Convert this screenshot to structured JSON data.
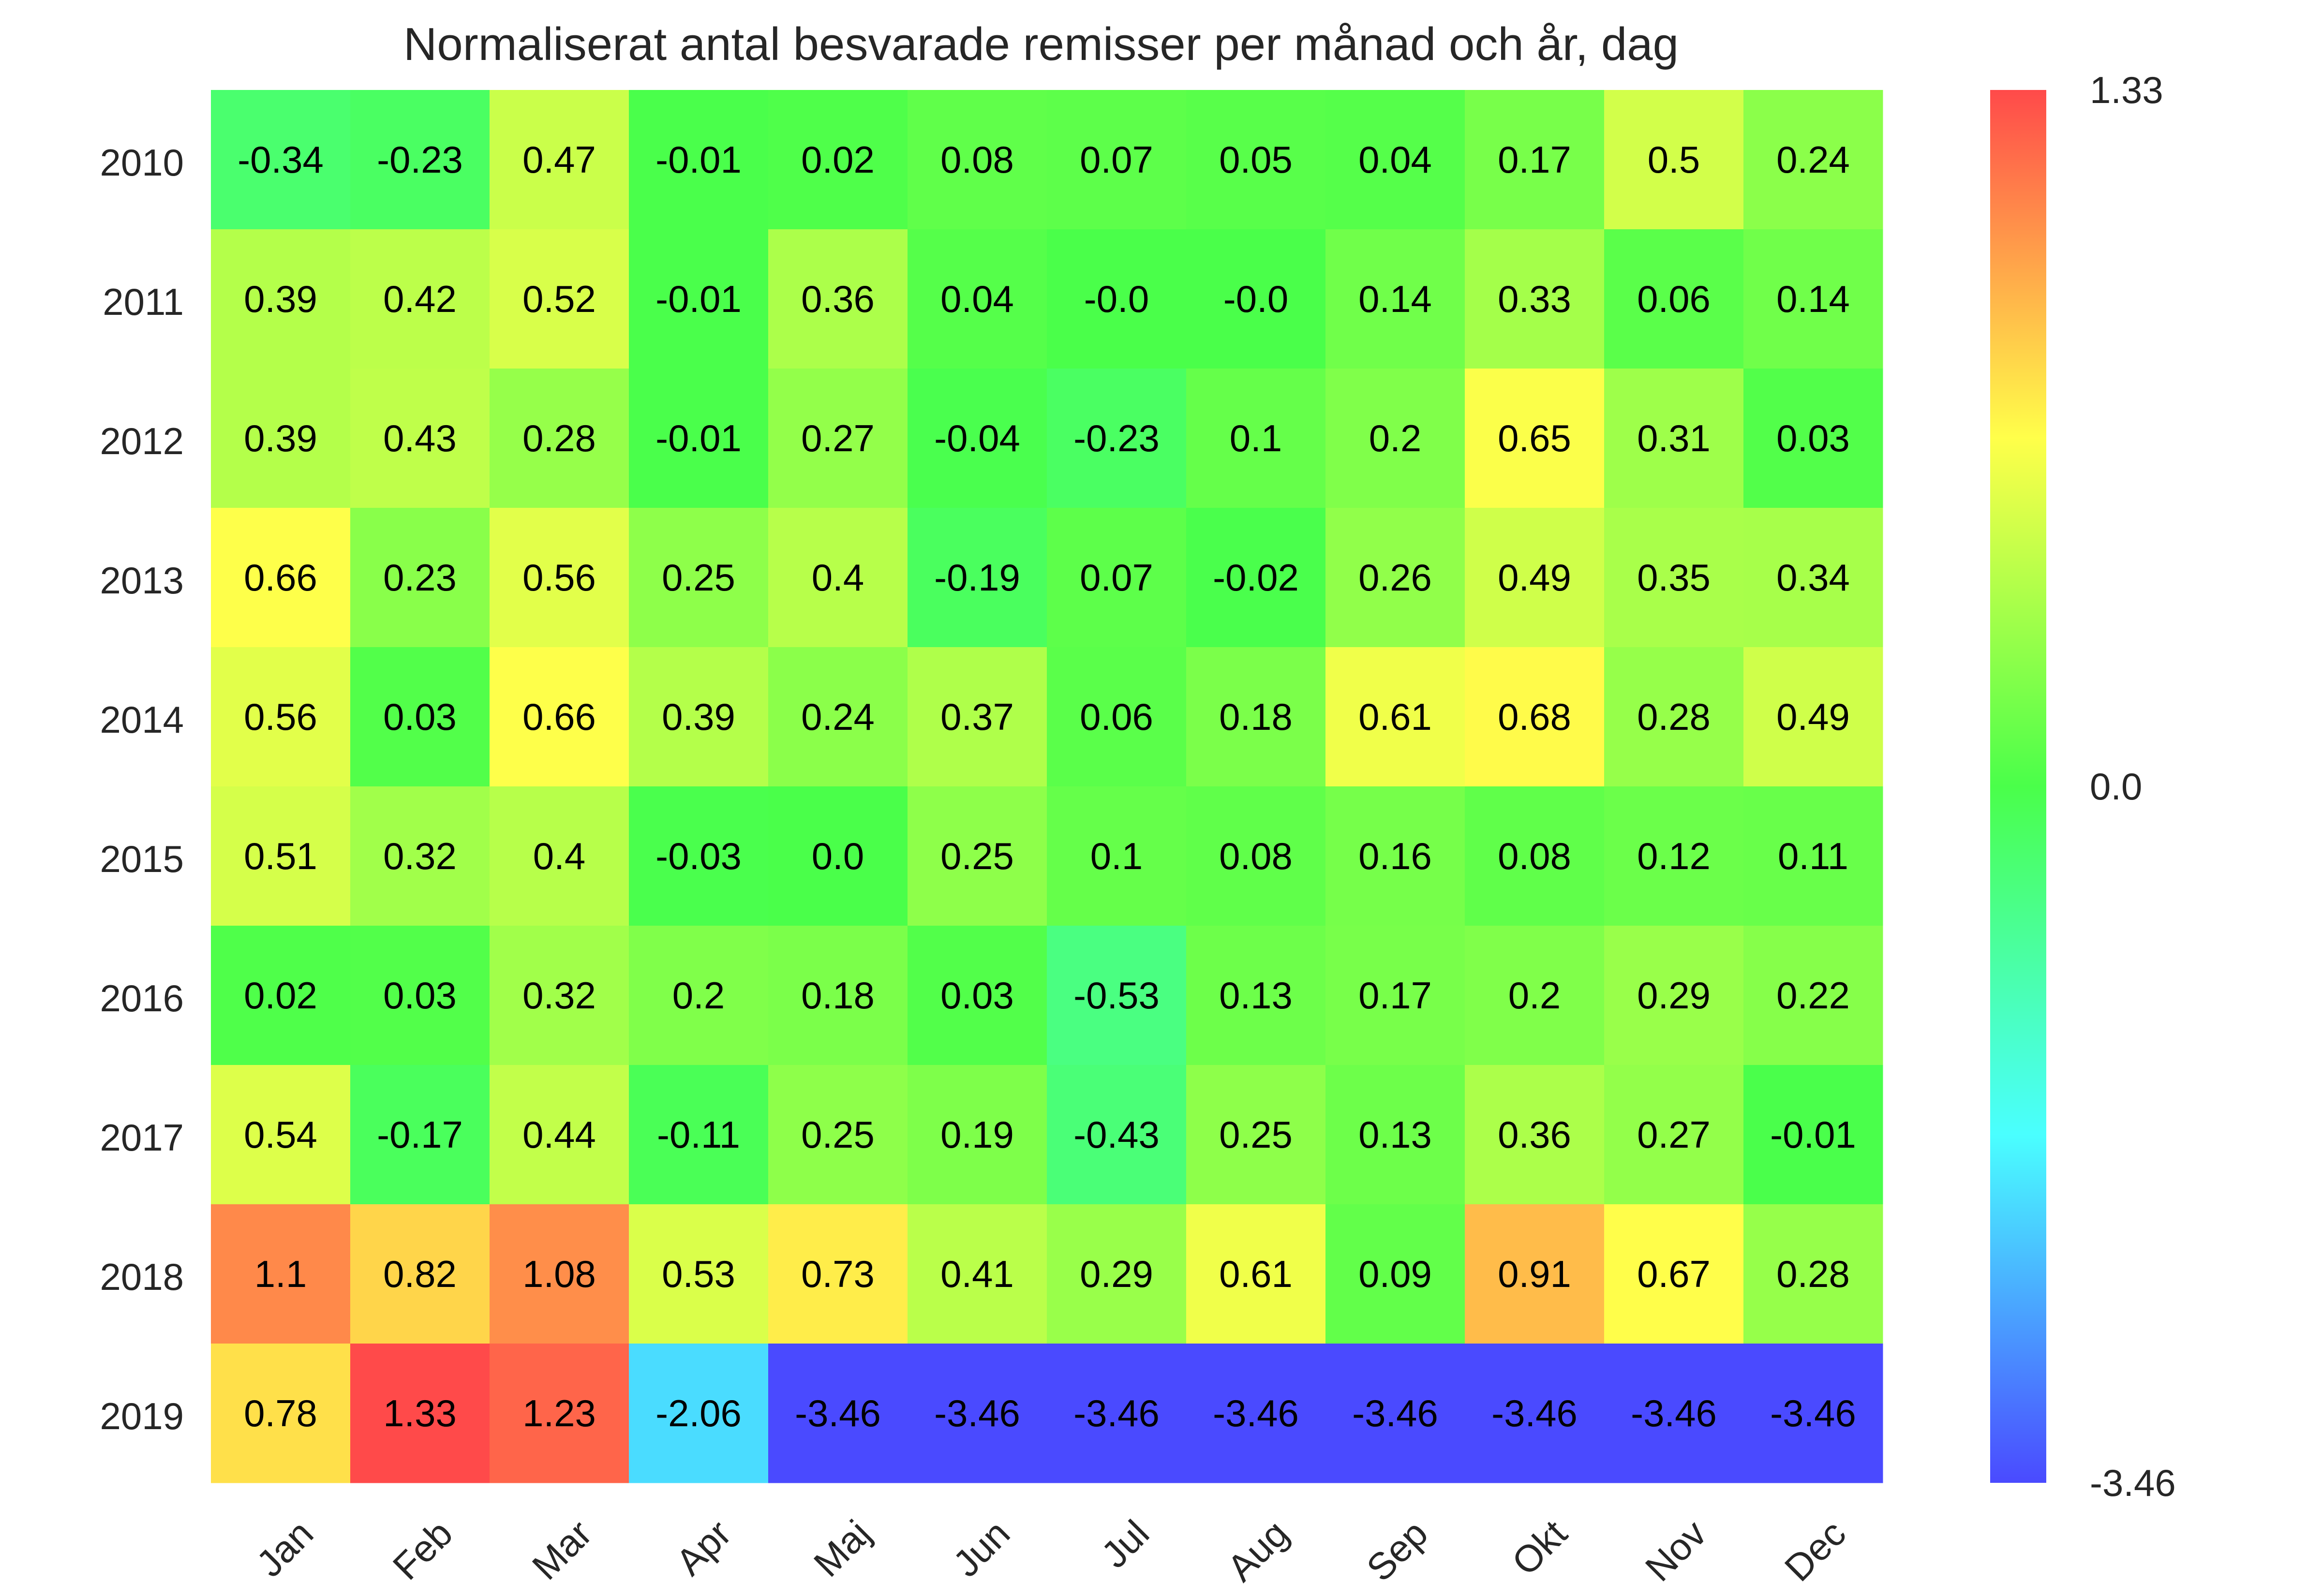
{
  "chart_data": {
    "type": "heatmap",
    "title": "Normaliserat antal besvarade remisser per månad och år, dag",
    "xlabel": "",
    "ylabel": "",
    "x_categories": [
      "Jan",
      "Feb",
      "Mar",
      "Apr",
      "Maj",
      "Jun",
      "Jul",
      "Aug",
      "Sep",
      "Okt",
      "Nov",
      "Dec"
    ],
    "y_categories": [
      "2010",
      "2011",
      "2012",
      "2013",
      "2014",
      "2015",
      "2016",
      "2017",
      "2018",
      "2019"
    ],
    "values": [
      [
        -0.34,
        -0.23,
        0.47,
        -0.01,
        0.02,
        0.08,
        0.07,
        0.05,
        0.04,
        0.17,
        0.5,
        0.24
      ],
      [
        0.39,
        0.42,
        0.52,
        -0.01,
        0.36,
        0.04,
        -0.0,
        -0.0,
        0.14,
        0.33,
        0.06,
        0.14
      ],
      [
        0.39,
        0.43,
        0.28,
        -0.01,
        0.27,
        -0.04,
        -0.23,
        0.1,
        0.2,
        0.65,
        0.31,
        0.03
      ],
      [
        0.66,
        0.23,
        0.56,
        0.25,
        0.4,
        -0.19,
        0.07,
        -0.02,
        0.26,
        0.49,
        0.35,
        0.34
      ],
      [
        0.56,
        0.03,
        0.66,
        0.39,
        0.24,
        0.37,
        0.06,
        0.18,
        0.61,
        0.68,
        0.28,
        0.49
      ],
      [
        0.51,
        0.32,
        0.4,
        -0.03,
        0.0,
        0.25,
        0.1,
        0.08,
        0.16,
        0.08,
        0.12,
        0.11
      ],
      [
        0.02,
        0.03,
        0.32,
        0.2,
        0.18,
        0.03,
        -0.53,
        0.13,
        0.17,
        0.2,
        0.29,
        0.22
      ],
      [
        0.54,
        -0.17,
        0.44,
        -0.11,
        0.25,
        0.19,
        -0.43,
        0.25,
        0.13,
        0.36,
        0.27,
        -0.01
      ],
      [
        1.1,
        0.82,
        1.08,
        0.53,
        0.73,
        0.41,
        0.29,
        0.61,
        0.09,
        0.91,
        0.67,
        0.28
      ],
      [
        0.78,
        1.33,
        1.23,
        -2.06,
        -3.46,
        -3.46,
        -3.46,
        -3.46,
        -3.46,
        -3.46,
        -3.46,
        -3.46
      ]
    ],
    "cell_labels": [
      [
        "-0.34",
        "-0.23",
        "0.47",
        "-0.01",
        "0.02",
        "0.08",
        "0.07",
        "0.05",
        "0.04",
        "0.17",
        "0.5",
        "0.24"
      ],
      [
        "0.39",
        "0.42",
        "0.52",
        "-0.01",
        "0.36",
        "0.04",
        "-0.0",
        "-0.0",
        "0.14",
        "0.33",
        "0.06",
        "0.14"
      ],
      [
        "0.39",
        "0.43",
        "0.28",
        "-0.01",
        "0.27",
        "-0.04",
        "-0.23",
        "0.1",
        "0.2",
        "0.65",
        "0.31",
        "0.03"
      ],
      [
        "0.66",
        "0.23",
        "0.56",
        "0.25",
        "0.4",
        "-0.19",
        "0.07",
        "-0.02",
        "0.26",
        "0.49",
        "0.35",
        "0.34"
      ],
      [
        "0.56",
        "0.03",
        "0.66",
        "0.39",
        "0.24",
        "0.37",
        "0.06",
        "0.18",
        "0.61",
        "0.68",
        "0.28",
        "0.49"
      ],
      [
        "0.51",
        "0.32",
        "0.4",
        "-0.03",
        "0.0",
        "0.25",
        "0.1",
        "0.08",
        "0.16",
        "0.08",
        "0.12",
        "0.11"
      ],
      [
        "0.02",
        "0.03",
        "0.32",
        "0.2",
        "0.18",
        "0.03",
        "-0.53",
        "0.13",
        "0.17",
        "0.2",
        "0.29",
        "0.22"
      ],
      [
        "0.54",
        "-0.17",
        "0.44",
        "-0.11",
        "0.25",
        "0.19",
        "-0.43",
        "0.25",
        "0.13",
        "0.36",
        "0.27",
        "-0.01"
      ],
      [
        "1.1",
        "0.82",
        "1.08",
        "0.53",
        "0.73",
        "0.41",
        "0.29",
        "0.61",
        "0.09",
        "0.91",
        "0.67",
        "0.28"
      ],
      [
        "0.78",
        "1.33",
        "1.23",
        "-2.06",
        "-3.46",
        "-3.46",
        "-3.46",
        "-3.46",
        "-3.46",
        "-3.46",
        "-3.46",
        "-3.46"
      ]
    ],
    "colorbar": {
      "min": -3.46,
      "center": 0.0,
      "max": 1.33,
      "tick_labels": [
        "1.33",
        "0.0",
        "-3.46"
      ],
      "colormap": "rainbow (blue → cyan → green → yellow → red), diverging at 0.0",
      "color_stops": [
        "#4a4aff",
        "#4affff",
        "#4aff4a",
        "#ffff4a",
        "#ff4a4a"
      ]
    },
    "grid": false,
    "x_tick_rotation": "45 degrees"
  }
}
